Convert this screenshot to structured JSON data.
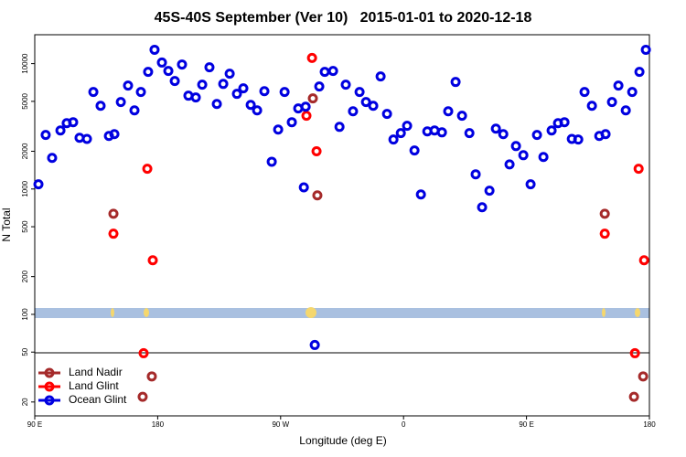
{
  "chart_data": {
    "type": "scatter",
    "title": "45S-40S September (Ver 10)   2015-01-01 to 2020-12-18",
    "x_label": "Longitude (deg E)",
    "y_label": "N Total",
    "log_y": true,
    "legend": "lower left",
    "xlim": [
      90,
      540
    ],
    "xticks": [
      {
        "value": 90,
        "label": "90 E"
      },
      {
        "value": 180,
        "label": "180"
      },
      {
        "value": 270,
        "label": "90 W"
      },
      {
        "value": 360,
        "label": "0"
      },
      {
        "value": 450,
        "label": "90 E"
      },
      {
        "value": 540,
        "label": "180"
      }
    ],
    "ylim": [
      15.5,
      17000
    ],
    "yticks": [
      20,
      50,
      100,
      200,
      500,
      1000,
      2000,
      5000,
      10000
    ],
    "series": [
      {
        "name": "Land Nadir",
        "color": "#a52a2a",
        "x": [
          147.6,
          169,
          175.7,
          293.6,
          296.9,
          507.3,
          528.7,
          535.4
        ],
        "values": [
          635,
          22,
          32,
          5280,
          890,
          635,
          22,
          32
        ]
      },
      {
        "name": "Land Glint",
        "color": "#ff0000",
        "x": [
          147.6,
          172.4,
          176.4,
          169.7,
          288.9,
          293,
          296.3,
          507.3,
          532.1,
          536.1,
          529.4
        ],
        "values": [
          440,
          1450,
          270,
          49,
          3840,
          11100,
          2000,
          440,
          1450,
          270,
          49
        ]
      },
      {
        "name": "Ocean Glint",
        "color": "#0000e0",
        "x": [
          92.7,
          98,
          102.7,
          108.8,
          113.4,
          118.1,
          122.8,
          128.2,
          132.9,
          138.2,
          144.3,
          148.3,
          153,
          158.3,
          163,
          167.7,
          173,
          177.7,
          183.1,
          187.8,
          192.5,
          197.8,
          202.5,
          207.9,
          212.6,
          217.9,
          223.3,
          228,
          232.7,
          238,
          242.7,
          248.1,
          252.8,
          258.1,
          263.5,
          268.2,
          272.9,
          278.2,
          282.9,
          287,
          288.3,
          295,
          298.3,
          302.3,
          308.4,
          313.1,
          317.7,
          323,
          327.8,
          332.5,
          337.8,
          343.2,
          347.9,
          352.6,
          358,
          362.6,
          368,
          372.7,
          377.4,
          382.7,
          388.1,
          392.7,
          398.1,
          402.8,
          408.2,
          412.8,
          417.5,
          422.9,
          427.6,
          433,
          437.6,
          442.3,
          447.7,
          453,
          457.7,
          462.4,
          468.4,
          473.1,
          477.8,
          483.2,
          487.9,
          492.5,
          497.9,
          503.3,
          507.9,
          512.6,
          517.3,
          522.7,
          527.4,
          532.7,
          537.4
        ],
        "values": [
          1090,
          2700,
          1770,
          2930,
          3350,
          3410,
          2560,
          2510,
          5940,
          4610,
          2650,
          2740,
          4940,
          6680,
          4240,
          5940,
          8600,
          12900,
          10200,
          8740,
          7270,
          9840,
          5550,
          5370,
          6790,
          9350,
          4770,
          6890,
          8310,
          5740,
          6350,
          4690,
          4240,
          6030,
          1650,
          2980,
          5940,
          3410,
          4390,
          1030,
          4530,
          57,
          6570,
          8600,
          8740,
          3130,
          6790,
          4170,
          5940,
          4940,
          4610,
          7900,
          3970,
          2480,
          2790,
          3190,
          2030,
          905,
          2880,
          2930,
          2830,
          4170,
          7140,
          3840,
          2790,
          1310,
          715,
          970,
          3030,
          2740,
          1570,
          2200,
          1860,
          1090,
          2700,
          1800,
          2930,
          3350,
          3410,
          2510,
          2480,
          5940,
          4610,
          2650,
          2740,
          4940,
          6680,
          4240,
          5940,
          8600,
          12900
        ]
      }
    ]
  }
}
